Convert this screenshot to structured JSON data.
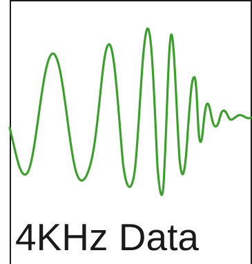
{
  "caption": "4KHz Data",
  "colors": {
    "waveform": "#3aa02b",
    "border": "#1a1a1a",
    "text": "#1a1a1a",
    "background": "#ffffff"
  }
}
